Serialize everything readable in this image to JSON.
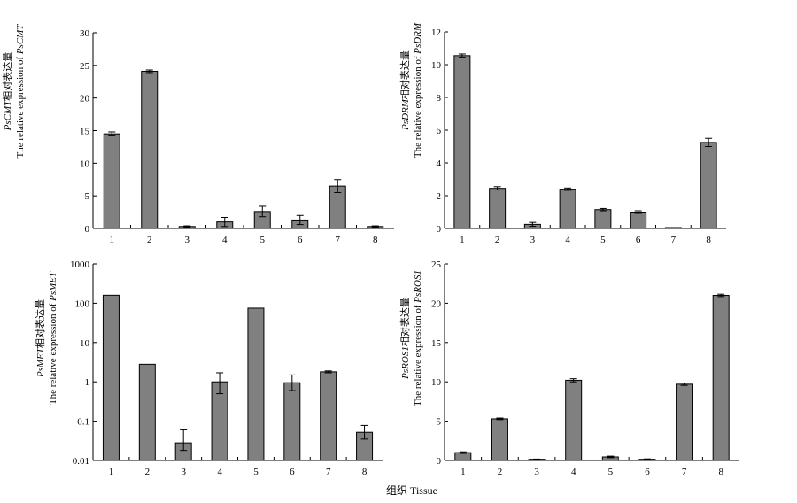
{
  "figure": {
    "xlabel": "组织 Tissue"
  },
  "chart_data": [
    {
      "type": "bar",
      "ylabel_gene": "PsCMT",
      "ylabel_cn": "相对表达量",
      "ylabel_en": "The relative expression of",
      "categories": [
        "1",
        "2",
        "3",
        "4",
        "5",
        "6",
        "7",
        "8"
      ],
      "values": [
        14.5,
        24.1,
        0.3,
        1.0,
        2.6,
        1.3,
        6.5,
        0.3
      ],
      "errors": [
        0.3,
        0.2,
        0.1,
        0.7,
        0.8,
        0.7,
        1.0,
        0.1
      ],
      "yscale": "linear",
      "ylim": [
        0,
        30
      ],
      "yticks": [
        0,
        5,
        10,
        15,
        20,
        25,
        30
      ],
      "ytick_labels": [
        "0",
        "5",
        "10",
        "15",
        "20",
        "25",
        "30"
      ],
      "bar_color": "#808080"
    },
    {
      "type": "bar",
      "ylabel_gene": "PsDRM",
      "ylabel_cn": "相对表达量",
      "ylabel_en": "The relative expression of",
      "categories": [
        "1",
        "2",
        "3",
        "4",
        "5",
        "6",
        "7",
        "8"
      ],
      "values": [
        10.55,
        2.45,
        0.25,
        2.4,
        1.15,
        1.0,
        0.02,
        5.25
      ],
      "errors": [
        0.1,
        0.1,
        0.12,
        0.07,
        0.07,
        0.08,
        0.01,
        0.25
      ],
      "yscale": "linear",
      "ylim": [
        0,
        12
      ],
      "yticks": [
        0,
        2,
        4,
        6,
        8,
        10,
        12
      ],
      "ytick_labels": [
        "0",
        "2",
        "4",
        "6",
        "8",
        "10",
        "12"
      ],
      "bar_color": "#808080"
    },
    {
      "type": "bar",
      "ylabel_gene": "PsMET",
      "ylabel_cn": "相对表达量",
      "ylabel_en": "The relative expression of",
      "categories": [
        "1",
        "2",
        "3",
        "4",
        "5",
        "6",
        "7",
        "8"
      ],
      "values": [
        160,
        2.8,
        0.028,
        1.0,
        75,
        0.95,
        1.8,
        0.052
      ],
      "err_low": [
        160,
        2.8,
        0.018,
        0.5,
        75,
        0.6,
        1.7,
        0.035
      ],
      "err_high": [
        160,
        2.8,
        0.06,
        1.7,
        75,
        1.5,
        1.9,
        0.078
      ],
      "yscale": "log",
      "ylim": [
        0.01,
        1000
      ],
      "yticks": [
        0.01,
        0.1,
        1,
        10,
        100,
        1000
      ],
      "ytick_labels": [
        "0.01",
        "0.1",
        "1",
        "10",
        "100",
        "1000"
      ],
      "bar_color": "#808080"
    },
    {
      "type": "bar",
      "ylabel_gene": "PsROS1",
      "ylabel_cn": "相对表达量",
      "ylabel_en": "The relative expression of",
      "categories": [
        "1",
        "2",
        "3",
        "4",
        "5",
        "6",
        "7",
        "8"
      ],
      "values": [
        1.0,
        5.3,
        0.15,
        10.2,
        0.45,
        0.15,
        9.7,
        21.0
      ],
      "errors": [
        0.1,
        0.1,
        0.03,
        0.2,
        0.1,
        0.05,
        0.15,
        0.15
      ],
      "yscale": "linear",
      "ylim": [
        0,
        25
      ],
      "yticks": [
        0,
        5,
        10,
        15,
        20,
        25
      ],
      "ytick_labels": [
        "0",
        "5",
        "10",
        "15",
        "20",
        "25"
      ],
      "bar_color": "#808080"
    }
  ]
}
